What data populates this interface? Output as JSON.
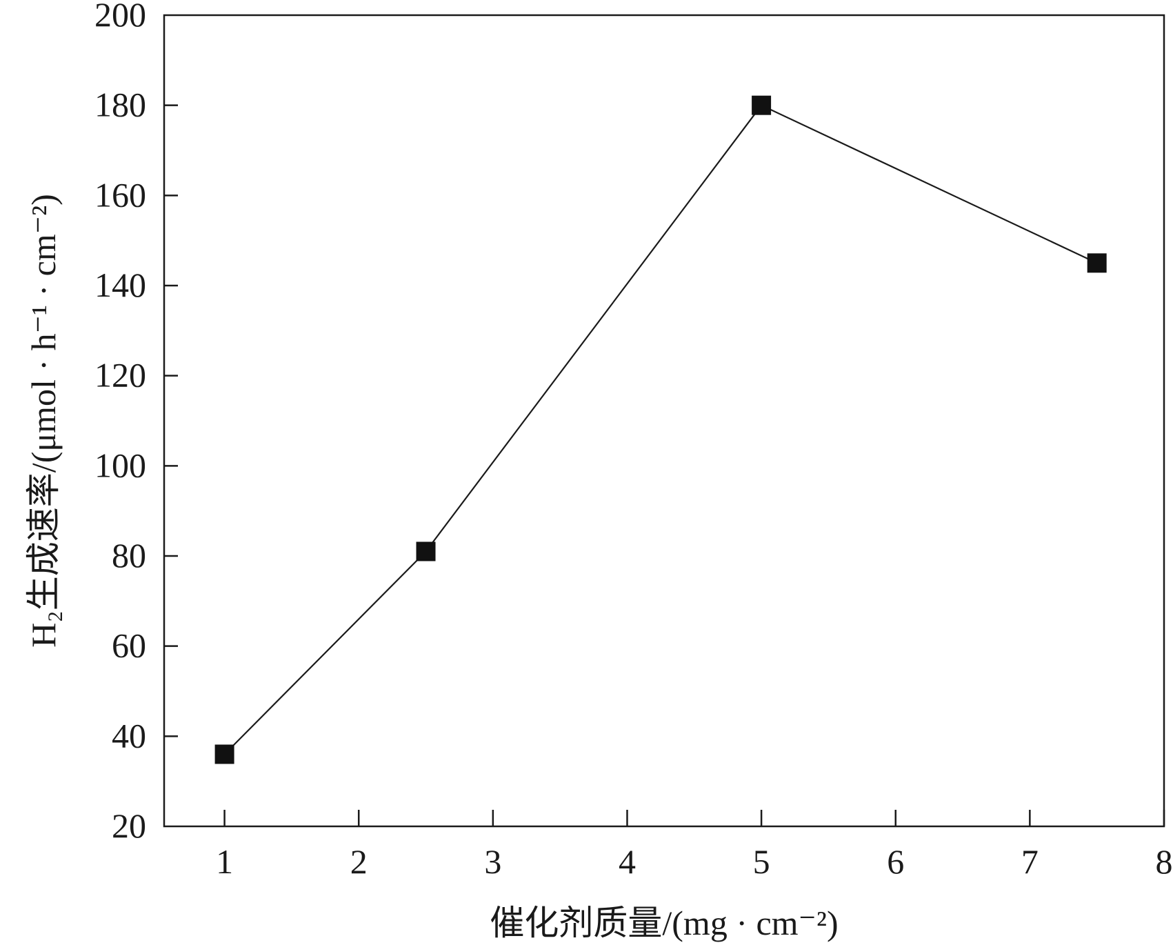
{
  "chart_data": {
    "type": "line",
    "x": [
      1,
      2.5,
      5,
      7.5
    ],
    "series": [
      {
        "values": [
          36,
          81,
          180,
          145
        ],
        "marker": "square",
        "color": "#111111"
      }
    ],
    "xlabel": "催化剂质量/(mg · cm⁻²)",
    "ylabel": "H₂生成速率/(μmol · h⁻¹ · cm⁻²)",
    "xlim": [
      0.55,
      8
    ],
    "ylim": [
      20,
      200
    ],
    "xticks": [
      1,
      2,
      3,
      4,
      5,
      6,
      7,
      8
    ],
    "yticks": [
      20,
      40,
      60,
      80,
      100,
      120,
      140,
      160,
      180,
      200
    ],
    "grid": false,
    "legend": "none"
  }
}
